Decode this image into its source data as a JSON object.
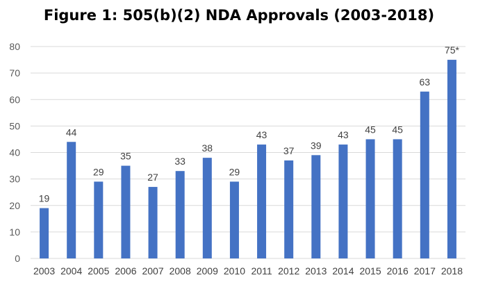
{
  "chart_data": {
    "type": "bar",
    "title": "Figure 1: 505(b)(2) NDA Approvals (2003-2018)",
    "xlabel": "",
    "ylabel": "",
    "categories": [
      "2003",
      "2004",
      "2005",
      "2006",
      "2007",
      "2008",
      "2009",
      "2010",
      "2011",
      "2012",
      "2013",
      "2014",
      "2015",
      "2016",
      "2017",
      "2018"
    ],
    "values": [
      19,
      44,
      29,
      35,
      27,
      33,
      38,
      29,
      43,
      37,
      39,
      43,
      45,
      45,
      63,
      75
    ],
    "data_labels": [
      "19",
      "44",
      "29",
      "35",
      "27",
      "33",
      "38",
      "29",
      "43",
      "37",
      "39",
      "43",
      "45",
      "45",
      "63",
      "75*"
    ],
    "ylim": [
      0,
      80
    ],
    "yticks": [
      0,
      10,
      20,
      30,
      40,
      50,
      60,
      70,
      80
    ],
    "grid": true,
    "legend": "none",
    "bar_color": "#4472C4",
    "grid_color": "#D9D9D9"
  }
}
